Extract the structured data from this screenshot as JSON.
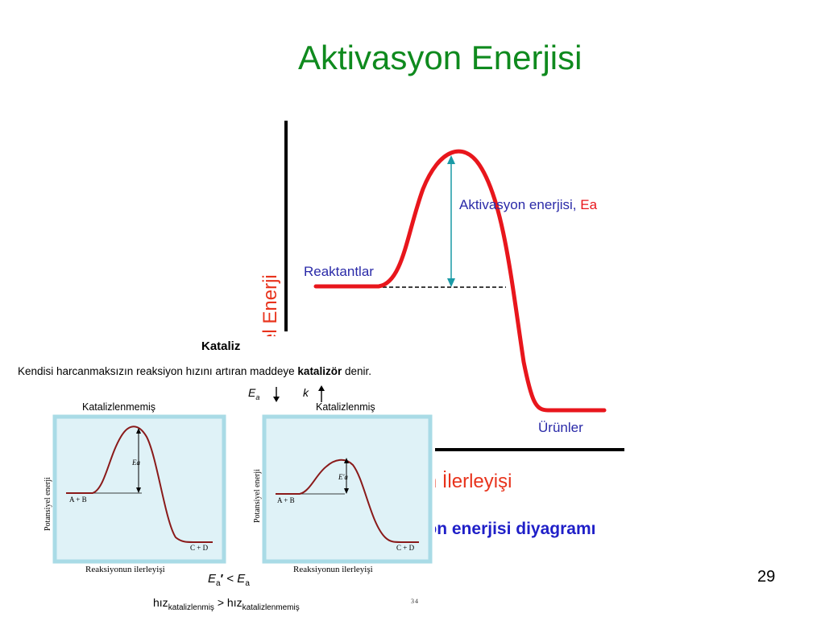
{
  "slide": {
    "title": "Aktivasyon Enerjisi",
    "page_number": "29"
  },
  "main_diagram": {
    "y_axis_label": "Potansiyel Enerji",
    "reactants_label": "Reaktantlar",
    "products_label": "Ürünler",
    "activation_label_prefix": "Aktivasyon enerjisi, ",
    "activation_label_symbol": "Ea",
    "x_axis_label": "Reaksiyon İlerleyişi",
    "caption": "Aktivasyon enerjisi diyagramı",
    "colors": {
      "curve": "#e8161c",
      "arrow": "#1a9aa6",
      "label_blue": "#2a2aa8",
      "caption_blue": "#1f1fc8",
      "axis_label": "#e8331c"
    }
  },
  "catalysis": {
    "heading": "Kataliz",
    "definition_part1": "Kendisi harcanmaksızın reaksiyon hızını artıran maddeye ",
    "definition_bold": "katalizör",
    "definition_part2": " denir.",
    "ea_arrow_symbol": "E",
    "ea_arrow_sub": "a",
    "k_symbol": "k",
    "panel_left": {
      "title": "Katalizlenmemiş",
      "y_label": "Potansiyel enerji",
      "x_label": "Reaksiyonun ilerleyişi",
      "reactant_label": "A + B",
      "product_label": "C + D",
      "ea_label": "Ea"
    },
    "panel_right": {
      "title": "Katalizlenmiş",
      "y_label": "Potansiyel enerji",
      "x_label": "Reaksiyonun ilerleyişi",
      "reactant_label": "A + B",
      "product_label": "C + D",
      "ea_label": "E'a"
    },
    "ea_compare": {
      "left": "E",
      "left_sub": "a",
      "prime": "′",
      "op": " < ",
      "right": "E",
      "right_sub": "a"
    },
    "speed_compare": {
      "left": "hız",
      "left_sub": "katalizlenmiş",
      "op": " > ",
      "right": "hız",
      "right_sub": "katalizlenmemiş"
    },
    "small_number": "34"
  }
}
